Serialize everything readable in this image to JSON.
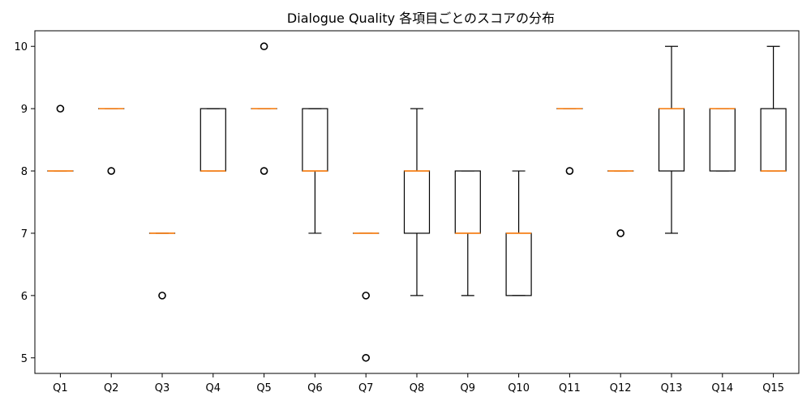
{
  "chart_data": {
    "type": "boxplot",
    "title": "Dialogue Quality 各項目ごとのスコアの分布",
    "xlabel": "",
    "ylabel": "",
    "ylim": [
      4.75,
      10.25
    ],
    "yticks": [
      5,
      6,
      7,
      8,
      9,
      10
    ],
    "categories": [
      "Q1",
      "Q2",
      "Q3",
      "Q4",
      "Q5",
      "Q6",
      "Q7",
      "Q8",
      "Q9",
      "Q10",
      "Q11",
      "Q12",
      "Q13",
      "Q14",
      "Q15"
    ],
    "boxes": [
      {
        "label": "Q1",
        "whislo": 8,
        "q1": 8,
        "med": 8,
        "q3": 8,
        "whishi": 8,
        "fliers": [
          9
        ]
      },
      {
        "label": "Q2",
        "whislo": 9,
        "q1": 9,
        "med": 9,
        "q3": 9,
        "whishi": 9,
        "fliers": [
          8
        ]
      },
      {
        "label": "Q3",
        "whislo": 7,
        "q1": 7,
        "med": 7,
        "q3": 7,
        "whishi": 7,
        "fliers": [
          6
        ]
      },
      {
        "label": "Q4",
        "whislo": 8,
        "q1": 8,
        "med": 8,
        "q3": 9,
        "whishi": 9,
        "fliers": []
      },
      {
        "label": "Q5",
        "whislo": 9,
        "q1": 9,
        "med": 9,
        "q3": 9,
        "whishi": 9,
        "fliers": [
          10,
          8
        ]
      },
      {
        "label": "Q6",
        "whislo": 7,
        "q1": 8,
        "med": 8,
        "q3": 9,
        "whishi": 9,
        "fliers": []
      },
      {
        "label": "Q7",
        "whislo": 7,
        "q1": 7,
        "med": 7,
        "q3": 7,
        "whishi": 7,
        "fliers": [
          6,
          5
        ]
      },
      {
        "label": "Q8",
        "whislo": 6,
        "q1": 7,
        "med": 8,
        "q3": 8,
        "whishi": 9,
        "fliers": []
      },
      {
        "label": "Q9",
        "whislo": 6,
        "q1": 7,
        "med": 7,
        "q3": 8,
        "whishi": 8,
        "fliers": []
      },
      {
        "label": "Q10",
        "whislo": 6,
        "q1": 6,
        "med": 7,
        "q3": 7,
        "whishi": 8,
        "fliers": []
      },
      {
        "label": "Q11",
        "whislo": 9,
        "q1": 9,
        "med": 9,
        "q3": 9,
        "whishi": 9,
        "fliers": [
          8
        ]
      },
      {
        "label": "Q12",
        "whislo": 8,
        "q1": 8,
        "med": 8,
        "q3": 8,
        "whishi": 8,
        "fliers": [
          7
        ]
      },
      {
        "label": "Q13",
        "whislo": 7,
        "q1": 8,
        "med": 9,
        "q3": 9,
        "whishi": 10,
        "fliers": []
      },
      {
        "label": "Q14",
        "whislo": 8,
        "q1": 8,
        "med": 9,
        "q3": 9,
        "whishi": 9,
        "fliers": []
      },
      {
        "label": "Q15",
        "whislo": 8,
        "q1": 8,
        "med": 8,
        "q3": 9,
        "whishi": 10,
        "fliers": []
      }
    ],
    "grid": false,
    "colors": {
      "box": "#000000",
      "median": "#ff7f0e"
    }
  }
}
